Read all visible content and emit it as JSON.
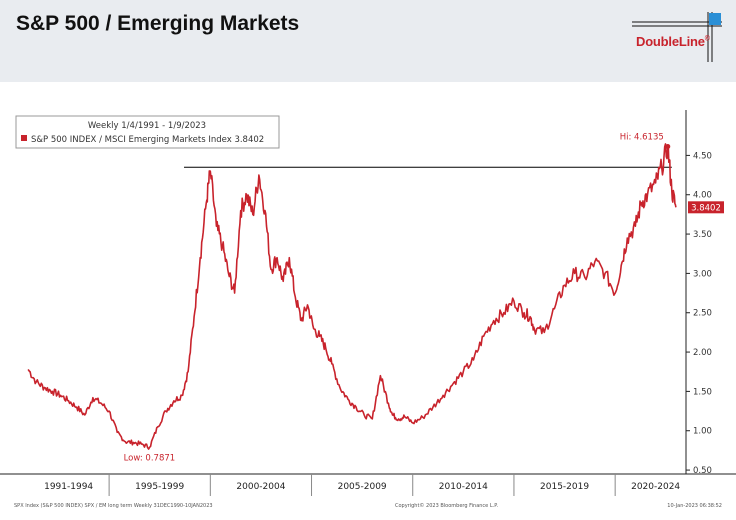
{
  "header": {
    "title": "S&P 500 / Emerging Markets",
    "logo_text": "DoubleLine",
    "logo_mark": "®"
  },
  "colors": {
    "series": "#c8232c",
    "header_bg": "#e9ecf0",
    "hline": "#000000"
  },
  "chart_data": {
    "type": "line",
    "legend": {
      "line1": "Weekly 1/4/1991 - 1/9/2023",
      "line2": "S&P 500 INDEX / MSCI Emerging Markets Index 3.8402"
    },
    "series": [
      {
        "name": "S&P 500 INDEX / MSCI Emerging Markets Index",
        "color": "#c8232c",
        "x": [
          1991.0,
          1991.4,
          1991.8,
          1992.2,
          1992.6,
          1993.0,
          1993.4,
          1993.8,
          1994.2,
          1994.6,
          1995.0,
          1995.4,
          1995.8,
          1996.2,
          1996.6,
          1997.0,
          1997.4,
          1997.8,
          1998.2,
          1998.6,
          1998.9,
          1999.2,
          1999.5,
          1999.8,
          2000.0,
          2000.3,
          2000.6,
          2000.9,
          2001.2,
          2001.5,
          2001.8,
          2002.1,
          2002.4,
          2002.7,
          2003.0,
          2003.3,
          2003.6,
          2003.9,
          2004.2,
          2004.5,
          2004.8,
          2005.1,
          2005.4,
          2005.7,
          2006.0,
          2006.4,
          2006.8,
          2007.2,
          2007.6,
          2008.0,
          2008.4,
          2008.8,
          2009.0,
          2009.3,
          2009.6,
          2010.0,
          2010.5,
          2011.0,
          2011.5,
          2012.0,
          2012.5,
          2013.0,
          2013.5,
          2014.0,
          2014.5,
          2015.0,
          2015.5,
          2015.8,
          2016.0,
          2016.5,
          2017.0,
          2017.5,
          2018.0,
          2018.5,
          2019.0,
          2019.5,
          2020.0,
          2020.3,
          2020.6,
          2021.0,
          2021.3,
          2021.6,
          2022.0,
          2022.3,
          2022.6,
          2022.8,
          2023.0
        ],
        "y": [
          1.78,
          1.62,
          1.55,
          1.5,
          1.45,
          1.38,
          1.3,
          1.2,
          1.42,
          1.35,
          1.25,
          0.98,
          0.86,
          0.85,
          0.83,
          0.79,
          1.05,
          1.25,
          1.38,
          1.45,
          1.75,
          2.45,
          3.2,
          3.9,
          4.3,
          3.6,
          3.35,
          3.0,
          2.75,
          3.8,
          4.0,
          3.75,
          4.25,
          3.8,
          3.05,
          3.2,
          2.9,
          3.2,
          2.7,
          2.4,
          2.6,
          2.3,
          2.2,
          2.05,
          1.85,
          1.55,
          1.4,
          1.3,
          1.2,
          1.15,
          1.7,
          1.35,
          1.2,
          1.15,
          1.18,
          1.1,
          1.17,
          1.3,
          1.45,
          1.6,
          1.75,
          1.9,
          2.2,
          2.4,
          2.5,
          2.65,
          2.5,
          2.45,
          2.3,
          2.25,
          2.55,
          2.85,
          3.0,
          2.95,
          3.15,
          3.0,
          2.75,
          3.1,
          3.45,
          3.6,
          3.9,
          4.0,
          4.15,
          4.35,
          4.6135,
          4.05,
          3.8402
        ]
      }
    ],
    "xlim": [
      1990.4,
      2023.5
    ],
    "ylim": [
      0.45,
      4.95
    ],
    "yticks": [
      0.5,
      1.0,
      1.5,
      2.0,
      2.5,
      3.0,
      3.5,
      4.0,
      4.5
    ],
    "ytick_labels": [
      "0.50",
      "1.00",
      "1.50",
      "2.00",
      "2.50",
      "3.00",
      "3.50",
      "4.00",
      "4.50"
    ],
    "x_period_labels": [
      "1991-1994",
      "1995-1999",
      "2000-2004",
      "2005-2009",
      "2010-2014",
      "2015-2019",
      "2020-2024"
    ],
    "x_period_boundaries": [
      1995.0,
      2000.0,
      2005.0,
      2010.0,
      2015.0,
      2020.0
    ],
    "x_period_centers": [
      1993.0,
      1997.5,
      2002.5,
      2007.5,
      2012.5,
      2017.5,
      2022.0
    ],
    "hline": {
      "y": 4.35,
      "x_start": 1998.7,
      "x_end": 2022.8
    },
    "annotations": {
      "high": {
        "label": "Hi: 4.6135",
        "x": 2022.6,
        "y": 4.6135
      },
      "low": {
        "label": "Low: 0.7871",
        "x": 1997.0,
        "y": 0.7871
      },
      "last": {
        "label": "3.8402",
        "y": 3.8402
      }
    },
    "grid": false,
    "legend_placement": "top-left",
    "footer_left": "SPX Index (S&P 500 INDEX) SPX / EM long term  Weekly 31DEC1990-10JAN2023",
    "footer_center": "Copyright© 2023 Bloomberg Finance L.P.",
    "footer_right": "10-Jan-2023 06:38:52"
  }
}
